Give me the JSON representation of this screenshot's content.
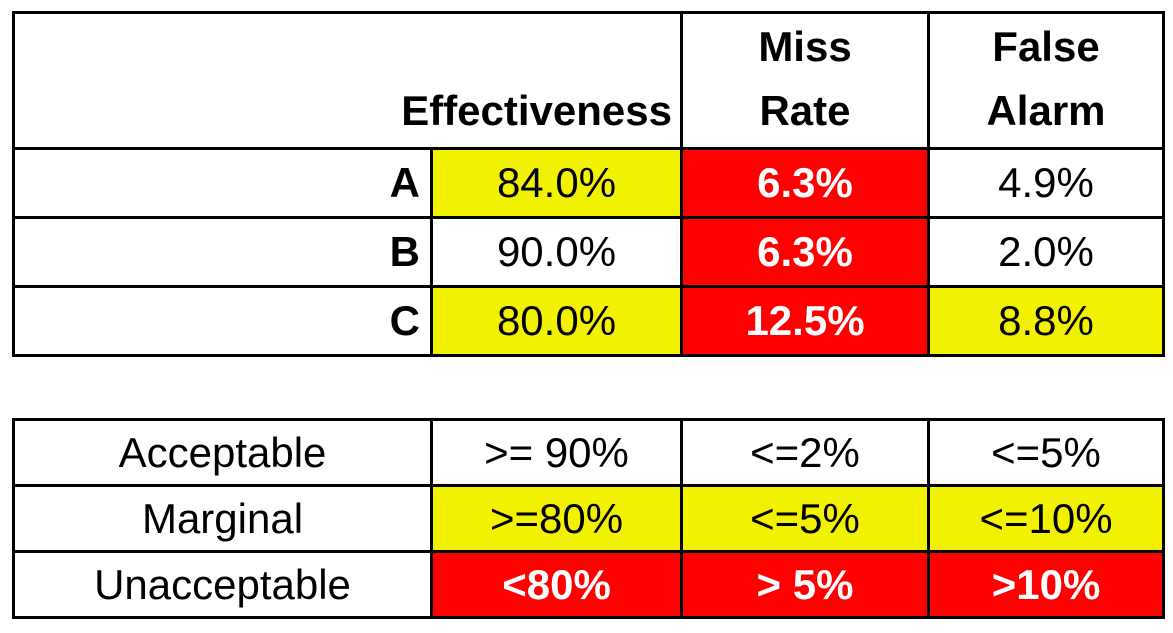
{
  "colors": {
    "yellow": "#f2f200",
    "red": "#ff0000",
    "white": "#ffffff"
  },
  "results": {
    "headers": {
      "effectiveness": "Effectiveness",
      "miss_rate_line1": "Miss",
      "miss_rate_line2": "Rate",
      "false_alarm_line1": "False",
      "false_alarm_line2": "Alarm"
    },
    "rows": [
      {
        "label": "A",
        "effectiveness": "84.0%",
        "effectiveness_color": "#f2f200",
        "miss_rate": "6.3%",
        "miss_rate_color": "#ff0000",
        "false_alarm": "4.9%",
        "false_alarm_color": "#ffffff"
      },
      {
        "label": "B",
        "effectiveness": "90.0%",
        "effectiveness_color": "#ffffff",
        "miss_rate": "6.3%",
        "miss_rate_color": "#ff0000",
        "false_alarm": "2.0%",
        "false_alarm_color": "#ffffff"
      },
      {
        "label": "C",
        "effectiveness": "80.0%",
        "effectiveness_color": "#f2f200",
        "miss_rate": "12.5%",
        "miss_rate_color": "#ff0000",
        "false_alarm": "8.8%",
        "false_alarm_color": "#f2f200"
      }
    ]
  },
  "legend": {
    "rows": [
      {
        "label": "Acceptable",
        "effectiveness": ">= 90%",
        "miss_rate": "<=2%",
        "false_alarm": "<=5%",
        "color": "#ffffff"
      },
      {
        "label": "Marginal",
        "effectiveness": ">=80%",
        "miss_rate": "<=5%",
        "false_alarm": "<=10%",
        "color": "#f2f200"
      },
      {
        "label": "Unacceptable",
        "effectiveness": "<80%",
        "miss_rate": "> 5%",
        "false_alarm": ">10%",
        "color": "#ff0000"
      }
    ]
  }
}
